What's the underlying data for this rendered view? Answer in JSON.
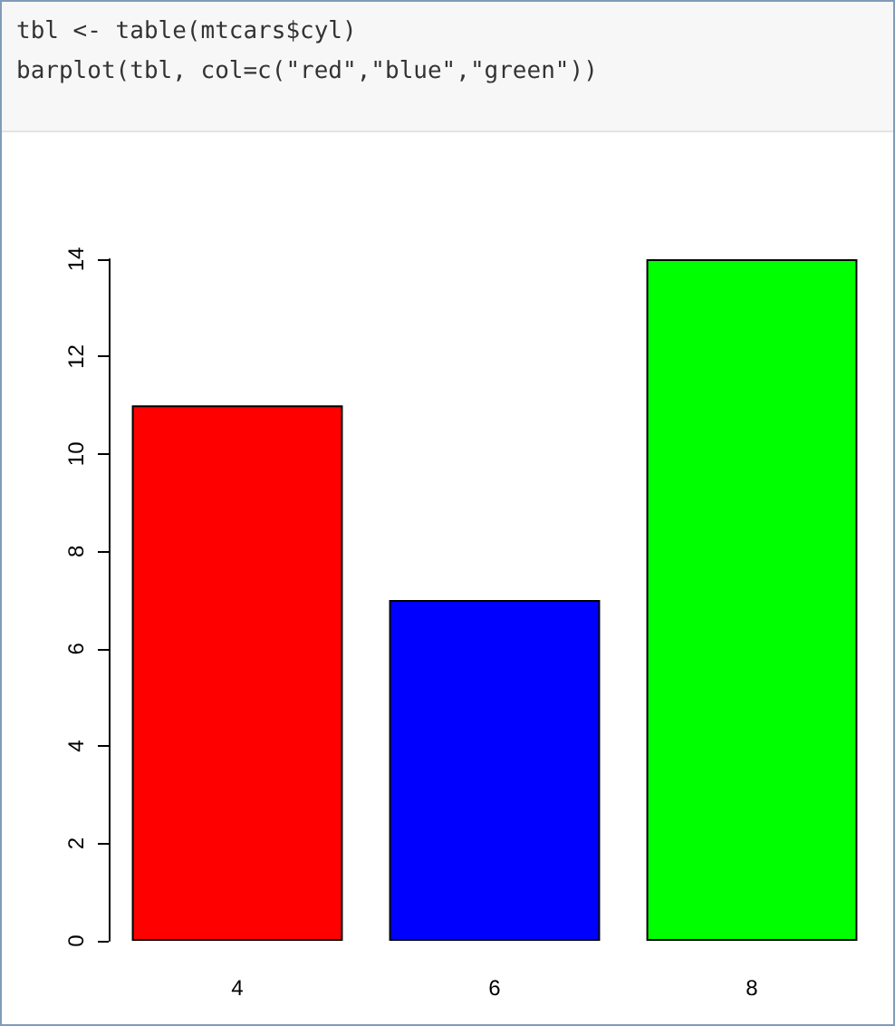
{
  "chart_data": {
    "type": "bar",
    "annotations": [
      "tbl <- table(mtcars$cyl)",
      "barplot(tbl, col=c(\"red\",\"blue\",\"green\"))"
    ],
    "categories": [
      "4",
      "6",
      "8"
    ],
    "values": [
      11,
      7,
      14
    ],
    "colors": [
      "#ff0000",
      "#0000ff",
      "#00ff00"
    ],
    "ylim": [
      0,
      14
    ],
    "yticks": [
      0,
      2,
      4,
      6,
      8,
      10,
      12,
      14
    ],
    "grid": false
  }
}
